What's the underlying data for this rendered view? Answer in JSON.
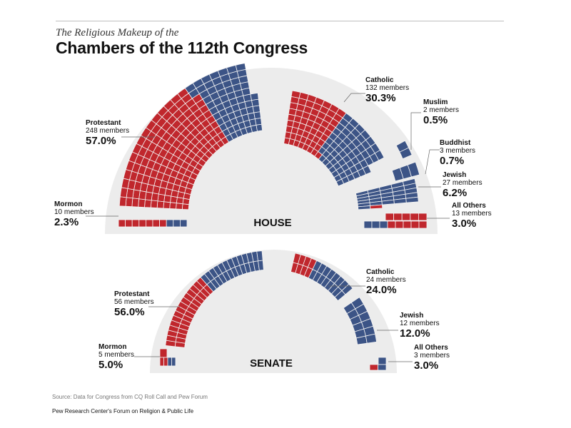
{
  "header": {
    "subtitle": "The Religious Makeup of the",
    "title": "Chambers of the 112th Congress"
  },
  "colors": {
    "red": "#c0272d",
    "blue": "#3c5486",
    "background_arc": "#ececec",
    "seat_stroke": "#f3f3f3"
  },
  "chart_data": [
    {
      "type": "pie",
      "chamber": "HOUSE",
      "title": "HOUSE",
      "segments": [
        {
          "key": "mormon",
          "name": "Mormon",
          "count_label": "10 members",
          "count": 10,
          "percent_label": "2.3%",
          "percent": 2.3,
          "red": 7,
          "blue": 3
        },
        {
          "key": "protestant",
          "name": "Protestant",
          "count_label": "248 members",
          "count": 248,
          "percent_label": "57.0%",
          "percent": 57.0,
          "red": 174,
          "blue": 74
        },
        {
          "key": "catholic",
          "name": "Catholic",
          "count_label": "132 members",
          "count": 132,
          "percent_label": "30.3%",
          "percent": 30.3,
          "red": 64,
          "blue": 68
        },
        {
          "key": "muslim",
          "name": "Muslim",
          "count_label": "2 members",
          "count": 2,
          "percent_label": "0.5%",
          "percent": 0.5,
          "red": 0,
          "blue": 2
        },
        {
          "key": "buddhist",
          "name": "Buddhist",
          "count_label": "3 members",
          "count": 3,
          "percent_label": "0.7%",
          "percent": 0.7,
          "red": 0,
          "blue": 3
        },
        {
          "key": "jewish",
          "name": "Jewish",
          "count_label": "27 members",
          "count": 27,
          "percent_label": "6.2%",
          "percent": 6.2,
          "red": 1,
          "blue": 26
        },
        {
          "key": "others",
          "name": "All Others",
          "count_label": "13 members",
          "count": 13,
          "percent_label": "3.0%",
          "percent": 3.0,
          "red": 10,
          "blue": 3
        }
      ]
    },
    {
      "type": "pie",
      "chamber": "SENATE",
      "title": "SENATE",
      "segments": [
        {
          "key": "mormon",
          "name": "Mormon",
          "count_label": "5 members",
          "count": 5,
          "percent_label": "5.0%",
          "percent": 5.0,
          "red": 3,
          "blue": 2
        },
        {
          "key": "protestant",
          "name": "Protestant",
          "count_label": "56 members",
          "count": 56,
          "percent_label": "56.0%",
          "percent": 56.0,
          "red": 30,
          "blue": 26
        },
        {
          "key": "catholic",
          "name": "Catholic",
          "count_label": "24 members",
          "count": 24,
          "percent_label": "24.0%",
          "percent": 24.0,
          "red": 8,
          "blue": 16
        },
        {
          "key": "jewish",
          "name": "Jewish",
          "count_label": "12 members",
          "count": 12,
          "percent_label": "12.0%",
          "percent": 12.0,
          "red": 0,
          "blue": 12
        },
        {
          "key": "others",
          "name": "All Others",
          "count_label": "3 members",
          "count": 3,
          "percent_label": "3.0%",
          "percent": 3.0,
          "red": 1,
          "blue": 2
        }
      ]
    }
  ],
  "footer": {
    "source": "Source: Data for Congress from CQ Roll Call and Pew Forum",
    "organization": "Pew Research Center's Forum on Religion & Public Life"
  }
}
